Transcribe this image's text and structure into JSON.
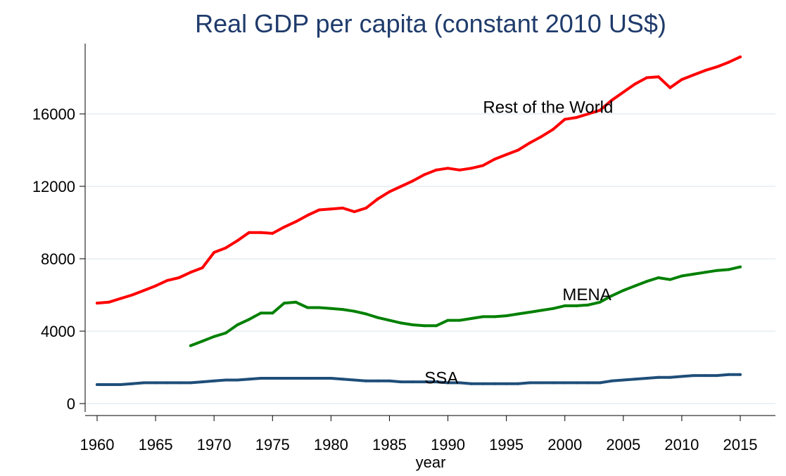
{
  "chart_data": {
    "type": "line",
    "title": "Real GDP per capita (constant 2010 US$)",
    "xlabel": "year",
    "ylabel": "",
    "xlim": [
      1959.2,
      1962.3
    ],
    "ylim": [
      0,
      18500
    ],
    "x_ticks": [
      1960,
      1965,
      1970,
      1975,
      1980,
      1985,
      1990,
      1995,
      2000,
      2005,
      2010,
      2015
    ],
    "y_ticks": [
      0,
      4000,
      8000,
      12000,
      16000
    ],
    "grid": true,
    "legend": "none (series labeled inline)",
    "series": [
      {
        "name": "Rest of the World",
        "color": "#ff0000",
        "label_anchor": {
          "x": 1993,
          "y": 16400
        },
        "points": [
          [
            1960,
            5550
          ],
          [
            1961,
            5600
          ],
          [
            1962,
            5800
          ],
          [
            1963,
            6000
          ],
          [
            1964,
            6250
          ],
          [
            1965,
            6500
          ],
          [
            1966,
            6800
          ],
          [
            1967,
            6950
          ],
          [
            1968,
            7250
          ],
          [
            1969,
            7500
          ],
          [
            1970,
            8350
          ],
          [
            1971,
            8600
          ],
          [
            1972,
            9000
          ],
          [
            1973,
            9450
          ],
          [
            1974,
            9450
          ],
          [
            1975,
            9400
          ],
          [
            1976,
            9750
          ],
          [
            1977,
            10050
          ],
          [
            1978,
            10400
          ],
          [
            1979,
            10700
          ],
          [
            1980,
            10750
          ],
          [
            1981,
            10800
          ],
          [
            1982,
            10600
          ],
          [
            1983,
            10800
          ],
          [
            1984,
            11300
          ],
          [
            1985,
            11700
          ],
          [
            1986,
            12000
          ],
          [
            1987,
            12300
          ],
          [
            1988,
            12650
          ],
          [
            1989,
            12900
          ],
          [
            1990,
            13000
          ],
          [
            1991,
            12900
          ],
          [
            1992,
            13000
          ],
          [
            1993,
            13150
          ],
          [
            1994,
            13500
          ],
          [
            1995,
            13750
          ],
          [
            1996,
            14000
          ],
          [
            1997,
            14400
          ],
          [
            1998,
            14750
          ],
          [
            1999,
            15150
          ],
          [
            2000,
            15700
          ],
          [
            2001,
            15800
          ],
          [
            2002,
            16000
          ],
          [
            2003,
            16200
          ],
          [
            2004,
            16750
          ],
          [
            2005,
            17200
          ],
          [
            2006,
            17650
          ],
          [
            2007,
            18000
          ],
          [
            2008,
            18050
          ],
          [
            2009,
            17450
          ],
          [
            2010,
            17900
          ],
          [
            2011,
            18150
          ],
          [
            2012,
            18400
          ],
          [
            2013,
            18600
          ],
          [
            2014,
            18850
          ],
          [
            2015,
            19150
          ]
        ]
      },
      {
        "name": "MENA",
        "color": "#008000",
        "label_anchor": {
          "x": 1999.8,
          "y": 6050
        },
        "points": [
          [
            1968,
            3200
          ],
          [
            1969,
            3450
          ],
          [
            1970,
            3700
          ],
          [
            1971,
            3900
          ],
          [
            1972,
            4350
          ],
          [
            1973,
            4650
          ],
          [
            1974,
            5000
          ],
          [
            1975,
            5000
          ],
          [
            1976,
            5550
          ],
          [
            1977,
            5600
          ],
          [
            1978,
            5300
          ],
          [
            1979,
            5300
          ],
          [
            1980,
            5250
          ],
          [
            1981,
            5200
          ],
          [
            1982,
            5100
          ],
          [
            1983,
            4950
          ],
          [
            1984,
            4750
          ],
          [
            1985,
            4600
          ],
          [
            1986,
            4450
          ],
          [
            1987,
            4350
          ],
          [
            1988,
            4300
          ],
          [
            1989,
            4300
          ],
          [
            1990,
            4600
          ],
          [
            1991,
            4600
          ],
          [
            1992,
            4700
          ],
          [
            1993,
            4800
          ],
          [
            1994,
            4800
          ],
          [
            1995,
            4850
          ],
          [
            1996,
            4950
          ],
          [
            1997,
            5050
          ],
          [
            1998,
            5150
          ],
          [
            1999,
            5250
          ],
          [
            2000,
            5400
          ],
          [
            2001,
            5400
          ],
          [
            2002,
            5450
          ],
          [
            2003,
            5600
          ],
          [
            2004,
            5950
          ],
          [
            2005,
            6250
          ],
          [
            2006,
            6500
          ],
          [
            2007,
            6750
          ],
          [
            2008,
            6950
          ],
          [
            2009,
            6850
          ],
          [
            2010,
            7050
          ],
          [
            2011,
            7150
          ],
          [
            2012,
            7250
          ],
          [
            2013,
            7350
          ],
          [
            2014,
            7400
          ],
          [
            2015,
            7550
          ]
        ]
      },
      {
        "name": "SSA",
        "color": "#1f4e79",
        "label_anchor": {
          "x": 1988,
          "y": 1450
        },
        "points": [
          [
            1960,
            1050
          ],
          [
            1961,
            1050
          ],
          [
            1962,
            1050
          ],
          [
            1963,
            1100
          ],
          [
            1964,
            1150
          ],
          [
            1965,
            1150
          ],
          [
            1966,
            1150
          ],
          [
            1967,
            1150
          ],
          [
            1968,
            1150
          ],
          [
            1969,
            1200
          ],
          [
            1970,
            1250
          ],
          [
            1971,
            1300
          ],
          [
            1972,
            1300
          ],
          [
            1973,
            1350
          ],
          [
            1974,
            1400
          ],
          [
            1975,
            1400
          ],
          [
            1976,
            1400
          ],
          [
            1977,
            1400
          ],
          [
            1978,
            1400
          ],
          [
            1979,
            1400
          ],
          [
            1980,
            1400
          ],
          [
            1981,
            1350
          ],
          [
            1982,
            1300
          ],
          [
            1983,
            1250
          ],
          [
            1984,
            1250
          ],
          [
            1985,
            1250
          ],
          [
            1986,
            1200
          ],
          [
            1987,
            1200
          ],
          [
            1988,
            1200
          ],
          [
            1989,
            1200
          ],
          [
            1990,
            1150
          ],
          [
            1991,
            1150
          ],
          [
            1992,
            1100
          ],
          [
            1993,
            1100
          ],
          [
            1994,
            1100
          ],
          [
            1995,
            1100
          ],
          [
            1996,
            1100
          ],
          [
            1997,
            1150
          ],
          [
            1998,
            1150
          ],
          [
            1999,
            1150
          ],
          [
            2000,
            1150
          ],
          [
            2001,
            1150
          ],
          [
            2002,
            1150
          ],
          [
            2003,
            1150
          ],
          [
            2004,
            1250
          ],
          [
            2005,
            1300
          ],
          [
            2006,
            1350
          ],
          [
            2007,
            1400
          ],
          [
            2008,
            1450
          ],
          [
            2009,
            1450
          ],
          [
            2010,
            1500
          ],
          [
            2011,
            1550
          ],
          [
            2012,
            1550
          ],
          [
            2013,
            1550
          ],
          [
            2014,
            1600
          ],
          [
            2015,
            1600
          ]
        ]
      }
    ]
  }
}
